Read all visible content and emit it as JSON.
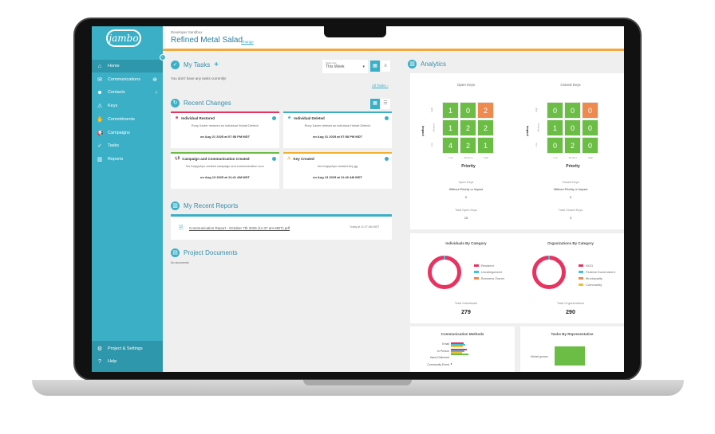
{
  "app": {
    "logo": "jambo",
    "environment": "Developer Sandbox",
    "project_title": "Refined Metal Salad",
    "change_link": "Change"
  },
  "sidebar": {
    "items": [
      {
        "label": "Home",
        "icon": "home-icon",
        "active": true
      },
      {
        "label": "Communications",
        "icon": "chat-icon",
        "extra": "add-icon"
      },
      {
        "label": "Contacts",
        "icon": "person-icon",
        "extra": "chevron-right-icon"
      },
      {
        "label": "Keys",
        "icon": "warning-icon"
      },
      {
        "label": "Commitments",
        "icon": "handshake-icon"
      },
      {
        "label": "Campaigns",
        "icon": "megaphone-icon"
      },
      {
        "label": "Tasks",
        "icon": "check-icon"
      },
      {
        "label": "Reports",
        "icon": "bar-chart-icon"
      }
    ],
    "bottom": [
      {
        "label": "Project & Settings",
        "icon": "gear-icon"
      },
      {
        "label": "Help",
        "icon": "help-icon"
      }
    ]
  },
  "tasks": {
    "title": "My Tasks",
    "filter_label": "Tasks due",
    "filter_value": "This Week",
    "empty": "You don't have any tasks currently!",
    "all_link": "All Tasks"
  },
  "recent": {
    "title": "Recent Changes",
    "cards": [
      {
        "title": "Individual Restored",
        "text": "Rony Xavier restored an individual Hobart Dietrich",
        "date": "on Aug 21 2025 at 07:58 PM MDT",
        "color": "#e8325f"
      },
      {
        "title": "Individual Deleted",
        "text": "Rony Xavier deleted an individual Hobart Dietrich",
        "date": "on Aug 21 2025 at 07:58 PM MDT",
        "color": "#3aafc6"
      },
      {
        "title": "Campaign and Communication Created",
        "text": "Iris Karpyshyn created campaign and communication xcvx",
        "date": "on Aug 13 2025 at 11:41 AM MDT",
        "color": "#6bbd45"
      },
      {
        "title": "Key Created",
        "text": "Iris Karpyshyn created key gg",
        "date": "on Aug 13 2025 at 11:40 AM MDT",
        "color": "#f2b12e"
      }
    ]
  },
  "reports": {
    "title": "My Recent Reports",
    "file": "Communication Report - October 7th 2025 (11:37 am MDT).pdf",
    "time": "Today at 11:37 AM MDT"
  },
  "documents": {
    "title": "Project Documents",
    "empty": "No documents"
  },
  "analytics": {
    "title": "Analytics",
    "heatmaps": [
      {
        "title": "Open Keys",
        "values": [
          [
            1,
            0,
            2
          ],
          [
            1,
            2,
            2
          ],
          [
            4,
            2,
            1
          ]
        ],
        "without_label": "Open Keys",
        "without_sub": "Without Priority or Impact",
        "without_value": "0",
        "total_label": "Total Open Keys",
        "total_value": "15"
      },
      {
        "title": "Closed Keys",
        "values": [
          [
            0,
            0,
            0
          ],
          [
            1,
            0,
            0
          ],
          [
            0,
            2,
            0
          ]
        ],
        "without_label": "Closed Keys",
        "without_sub": "Without Priority or Impact",
        "without_value": "0",
        "total_label": "Total Closed Keys",
        "total_value": "3"
      }
    ],
    "y_axis": "Impact",
    "x_axis": "Priority",
    "levels_y": [
      "High",
      "Medium",
      "Low"
    ],
    "levels_x": [
      "Low",
      "Medium",
      "High"
    ],
    "donuts": [
      {
        "title": "Individuals By Category",
        "legend": [
          {
            "label": "Resident",
            "color": "#e8325f"
          },
          {
            "label": "Uncategorized",
            "color": "#3ec3dc"
          },
          {
            "label": "Business Owner",
            "color": "#f08a4b"
          }
        ],
        "total_label": "Total Individuals",
        "total_value": "279"
      },
      {
        "title": "Organizations By Category",
        "legend": [
          {
            "label": "NGO",
            "color": "#e8325f"
          },
          {
            "label": "Federal Government",
            "color": "#3ec3dc"
          },
          {
            "label": "Municipality",
            "color": "#f08a4b"
          },
          {
            "label": "Community",
            "color": "#f2c02e"
          }
        ],
        "total_label": "Total Organizations",
        "total_value": "290"
      }
    ],
    "comm_methods": {
      "title": "Communication Methods",
      "categories": [
        "Email",
        "In Person",
        "Hand Delivered",
        "Community Event"
      ]
    },
    "tasks_by_rep": {
      "title": "Tasks By Representative",
      "categories": [
        "Michel gomes"
      ]
    }
  }
}
